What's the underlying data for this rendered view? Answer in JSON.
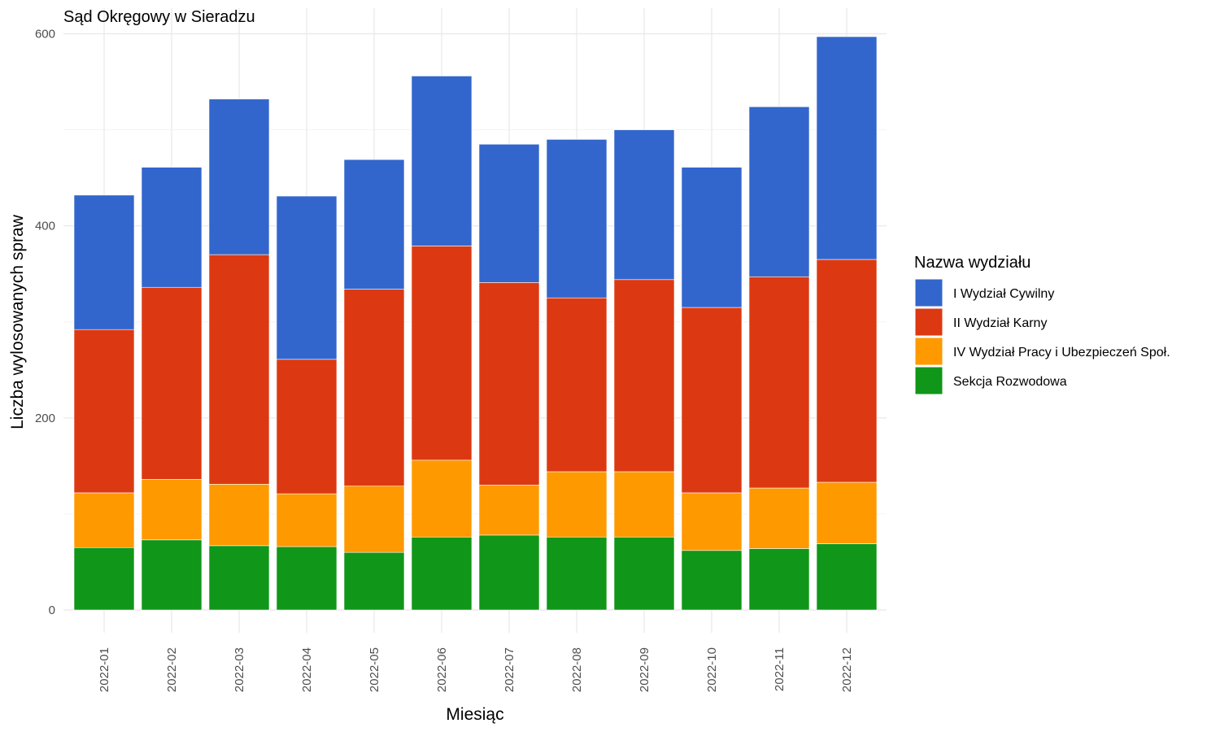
{
  "chart_data": {
    "type": "bar",
    "stacked": true,
    "title": "Sąd Okręgowy w Sieradzu",
    "xlabel": "Miesiąc",
    "ylabel": "Liczba wylosowanych spraw",
    "ylim": [
      0,
      620
    ],
    "yticks": [
      0,
      200,
      400,
      600
    ],
    "grid": true,
    "legend_title": "Nazwa wydziału",
    "legend_position": "right",
    "categories": [
      "2022-01",
      "2022-02",
      "2022-03",
      "2022-04",
      "2022-05",
      "2022-06",
      "2022-07",
      "2022-08",
      "2022-09",
      "2022-10",
      "2022-11",
      "2022-12"
    ],
    "series": [
      {
        "name": "Sekcja Rozwodowa",
        "color": "#109618",
        "values": [
          65,
          73,
          67,
          66,
          60,
          76,
          78,
          76,
          76,
          62,
          64,
          69
        ]
      },
      {
        "name": "IV Wydział Pracy i Ubezpieczeń Społ.",
        "color": "#ff9900",
        "values": [
          57,
          63,
          64,
          55,
          69,
          80,
          52,
          68,
          68,
          60,
          63,
          64
        ]
      },
      {
        "name": "II Wydział Karny",
        "color": "#dc3912",
        "values": [
          170,
          200,
          239,
          140,
          205,
          223,
          211,
          181,
          200,
          193,
          220,
          232
        ]
      },
      {
        "name": "I Wydział Cywilny",
        "color": "#3366cc",
        "values": [
          140,
          125,
          162,
          170,
          135,
          177,
          144,
          165,
          156,
          146,
          177,
          232
        ]
      }
    ],
    "legend_order": [
      "I Wydział Cywilny",
      "II Wydział Karny",
      "IV Wydział Pracy i Ubezpieczeń Społ.",
      "Sekcja Rozwodowa"
    ]
  }
}
